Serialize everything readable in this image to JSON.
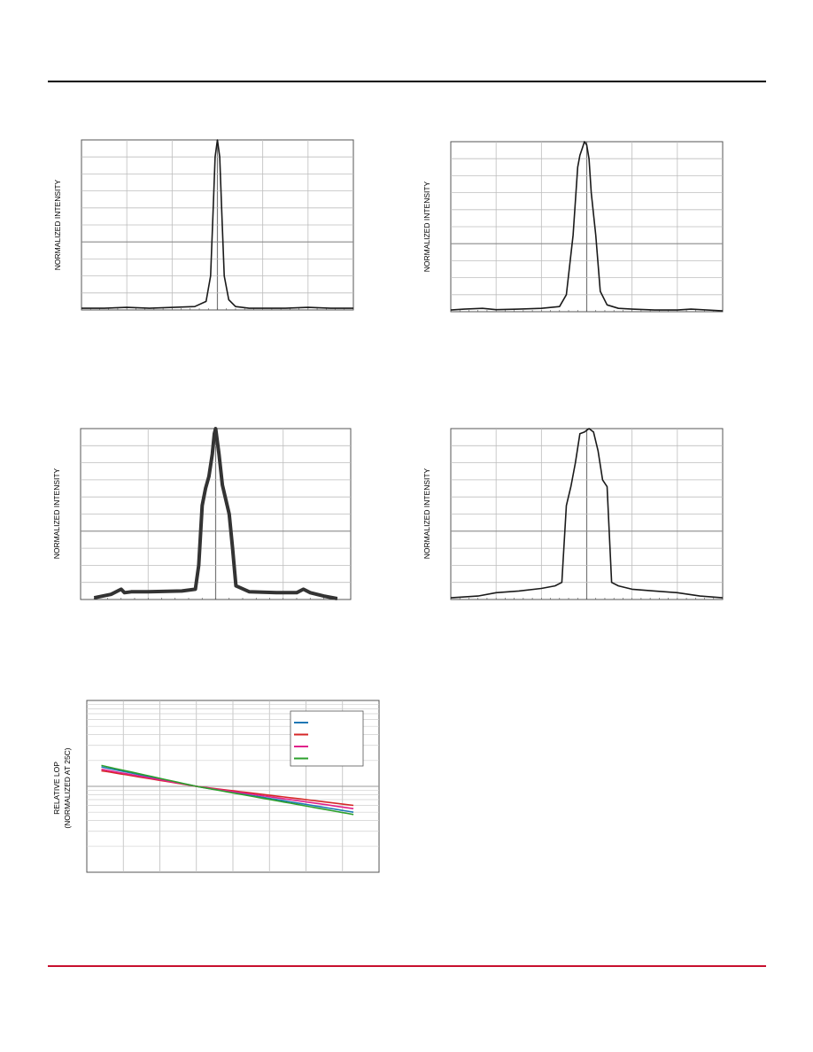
{
  "page": {
    "rule_color": "#000000",
    "footer_rule_color": "#c8102e"
  },
  "chart_data": [
    {
      "id": "chart1",
      "type": "line",
      "ylabel": "NORMALIZED INTENSITY",
      "grid": true,
      "xlim": [
        0,
        6
      ],
      "ylim": [
        0,
        1
      ],
      "x_gridlines": 6,
      "y_gridlines": 10,
      "center_line": true,
      "line_color": "#1a1a1a",
      "x": [
        0,
        0.5,
        1.0,
        1.5,
        2.5,
        2.75,
        2.85,
        2.9,
        2.95,
        3.0,
        3.05,
        3.1,
        3.15,
        3.25,
        3.4,
        3.7,
        4.5,
        5.0,
        5.5,
        6.0
      ],
      "values": [
        0.01,
        0.01,
        0.015,
        0.01,
        0.02,
        0.05,
        0.2,
        0.55,
        0.9,
        1.0,
        0.9,
        0.55,
        0.2,
        0.06,
        0.02,
        0.01,
        0.01,
        0.015,
        0.01,
        0.01
      ]
    },
    {
      "id": "chart2",
      "type": "line",
      "ylabel": "NORMALIZED INTENSITY",
      "grid": true,
      "xlim": [
        0,
        6
      ],
      "ylim": [
        0,
        1
      ],
      "x_gridlines": 6,
      "y_gridlines": 10,
      "center_line": true,
      "line_color": "#1a1a1a",
      "x": [
        0,
        0.3,
        0.7,
        1.0,
        1.5,
        2.0,
        2.4,
        2.55,
        2.7,
        2.8,
        2.85,
        2.9,
        2.95,
        3.0,
        3.05,
        3.1,
        3.2,
        3.3,
        3.45,
        3.7,
        4.0,
        4.5,
        5.0,
        5.3,
        6.0
      ],
      "values": [
        0.01,
        0.015,
        0.02,
        0.012,
        0.015,
        0.02,
        0.03,
        0.1,
        0.45,
        0.85,
        0.92,
        0.96,
        1.0,
        0.98,
        0.9,
        0.7,
        0.45,
        0.12,
        0.04,
        0.02,
        0.015,
        0.01,
        0.01,
        0.015,
        0.005
      ]
    },
    {
      "id": "chart3",
      "type": "line",
      "ylabel": "NORMALIZED INTENSITY",
      "grid": true,
      "xlim": [
        0,
        4
      ],
      "ylim": [
        0,
        1
      ],
      "x_gridlines": 4,
      "y_gridlines": 10,
      "center_line": true,
      "line_color": "#333333",
      "line_width": 4,
      "x": [
        0.2,
        0.45,
        0.6,
        0.65,
        0.75,
        1.0,
        1.5,
        1.7,
        1.75,
        1.8,
        1.85,
        1.9,
        1.95,
        1.98,
        2.0,
        2.05,
        2.1,
        2.2,
        2.25,
        2.3,
        2.5,
        2.9,
        3.2,
        3.3,
        3.4,
        3.6,
        3.8
      ],
      "values": [
        0.01,
        0.03,
        0.06,
        0.04,
        0.045,
        0.045,
        0.05,
        0.06,
        0.2,
        0.55,
        0.65,
        0.72,
        0.85,
        0.97,
        1.0,
        0.85,
        0.67,
        0.5,
        0.3,
        0.08,
        0.045,
        0.04,
        0.04,
        0.06,
        0.04,
        0.02,
        0.005
      ]
    },
    {
      "id": "chart4",
      "type": "line",
      "ylabel": "NORMALIZED INTENSITY",
      "grid": true,
      "xlim": [
        0,
        6
      ],
      "ylim": [
        0,
        1
      ],
      "x_gridlines": 6,
      "y_gridlines": 10,
      "center_line": true,
      "line_color": "#1a1a1a",
      "x": [
        0,
        0.3,
        0.6,
        1.0,
        1.5,
        2.0,
        2.3,
        2.45,
        2.55,
        2.65,
        2.75,
        2.85,
        2.95,
        3.05,
        3.15,
        3.25,
        3.35,
        3.45,
        3.55,
        3.7,
        4.0,
        4.5,
        5.0,
        5.5,
        6.0
      ],
      "values": [
        0.01,
        0.015,
        0.02,
        0.04,
        0.05,
        0.065,
        0.08,
        0.1,
        0.55,
        0.66,
        0.8,
        0.97,
        0.98,
        1.0,
        0.98,
        0.87,
        0.7,
        0.66,
        0.1,
        0.08,
        0.06,
        0.05,
        0.04,
        0.02,
        0.01
      ]
    },
    {
      "id": "chart5",
      "type": "line",
      "ylabel": "RELATIVE LOP",
      "ylabel2": "(NORMALIZED AT 25C)",
      "grid": true,
      "y_scale": "log",
      "xlim": [
        0,
        8
      ],
      "ylim": [
        0.1,
        10
      ],
      "x_gridlines": 8,
      "series": [
        {
          "name": "",
          "color": "#1f77b4",
          "x": [
            0.4,
            3.0,
            7.3
          ],
          "values": [
            1.68,
            1.0,
            0.5
          ]
        },
        {
          "name": "",
          "color": "#d62728",
          "x": [
            0.4,
            3.0,
            7.3
          ],
          "values": [
            1.52,
            1.0,
            0.6
          ]
        },
        {
          "name": "",
          "color": "#e0218a",
          "x": [
            0.4,
            3.0,
            7.3
          ],
          "values": [
            1.58,
            1.0,
            0.55
          ]
        },
        {
          "name": "",
          "color": "#2ca02c",
          "x": [
            0.4,
            3.0,
            7.3
          ],
          "values": [
            1.75,
            1.0,
            0.47
          ]
        }
      ],
      "legend": "top-right"
    }
  ]
}
